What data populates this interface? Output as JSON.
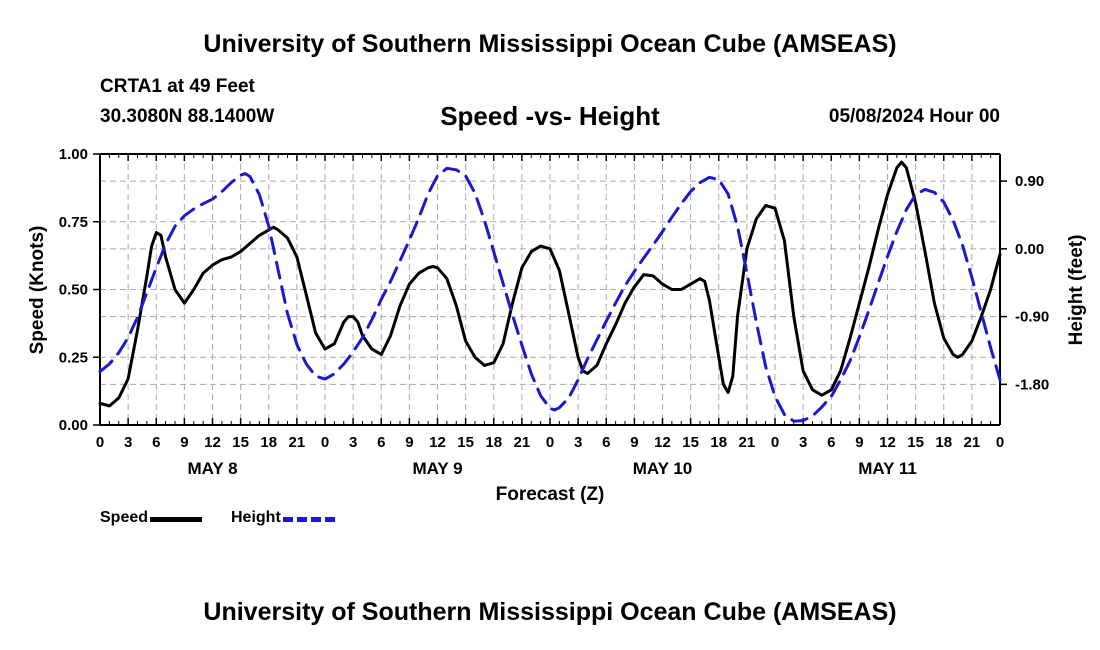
{
  "page": {
    "title_top": "University of Southern Mississippi Ocean Cube (AMSEAS)",
    "title_bottom": "University of Southern Mississippi Ocean Cube (AMSEAS)",
    "station": "CRTA1 at 49 Feet",
    "coords": "30.3080N  88.1400W",
    "run_date": "05/08/2024 Hour 00"
  },
  "colors": {
    "speed": "#000000",
    "height": "#1a1acc",
    "grid": "#aaaaaa"
  },
  "chart_data": {
    "type": "line",
    "title": "Speed -vs- Height",
    "xlabel": "Forecast (Z)",
    "ylabel_left": "Speed (Knots)",
    "ylabel_right": "Height (feet)",
    "xlim": [
      0,
      96
    ],
    "ylim_left": [
      0,
      1
    ],
    "ylim_right": [
      -2.34,
      1.26
    ],
    "x_tick_positions": [
      0,
      3,
      6,
      9,
      12,
      15,
      18,
      21,
      24,
      27,
      30,
      33,
      36,
      39,
      42,
      45,
      48,
      51,
      54,
      57,
      60,
      63,
      66,
      69,
      72,
      75,
      78,
      81,
      84,
      87,
      90,
      93,
      96
    ],
    "x_tick_labels": [
      "0",
      "3",
      "6",
      "9",
      "12",
      "15",
      "18",
      "21",
      "0",
      "3",
      "6",
      "9",
      "12",
      "15",
      "18",
      "21",
      "0",
      "3",
      "6",
      "9",
      "12",
      "15",
      "18",
      "21",
      "0",
      "3",
      "6",
      "9",
      "12",
      "15",
      "18",
      "21",
      "0"
    ],
    "day_labels": [
      {
        "x": 12,
        "label": "MAY 8"
      },
      {
        "x": 36,
        "label": "MAY 9"
      },
      {
        "x": 60,
        "label": "MAY 10"
      },
      {
        "x": 84,
        "label": "MAY 11"
      }
    ],
    "y_left_ticks": [
      0,
      0.25,
      0.5,
      0.75,
      1.0
    ],
    "y_left_tick_labels": [
      "0.00",
      "0.25",
      "0.50",
      "0.75",
      "1.00"
    ],
    "y_right_ticks": [
      0.9,
      0.0,
      -0.9,
      -1.8
    ],
    "y_right_tick_labels": [
      "0.90",
      "0.00",
      "-0.90",
      "-1.80"
    ],
    "grid": true,
    "series": [
      {
        "name": "Speed",
        "axis": "left",
        "style": "solid",
        "points": [
          [
            0,
            0.08
          ],
          [
            1,
            0.07
          ],
          [
            2,
            0.1
          ],
          [
            3,
            0.17
          ],
          [
            4,
            0.35
          ],
          [
            5,
            0.55
          ],
          [
            5.5,
            0.66
          ],
          [
            6,
            0.71
          ],
          [
            6.5,
            0.7
          ],
          [
            7,
            0.62
          ],
          [
            8,
            0.5
          ],
          [
            9,
            0.45
          ],
          [
            10,
            0.5
          ],
          [
            11,
            0.56
          ],
          [
            12,
            0.59
          ],
          [
            13,
            0.61
          ],
          [
            14,
            0.62
          ],
          [
            15,
            0.64
          ],
          [
            16,
            0.67
          ],
          [
            17,
            0.7
          ],
          [
            18,
            0.72
          ],
          [
            18.5,
            0.73
          ],
          [
            19,
            0.72
          ],
          [
            20,
            0.69
          ],
          [
            21,
            0.62
          ],
          [
            22,
            0.48
          ],
          [
            23,
            0.34
          ],
          [
            24,
            0.28
          ],
          [
            25,
            0.3
          ],
          [
            25.5,
            0.34
          ],
          [
            26,
            0.38
          ],
          [
            26.5,
            0.4
          ],
          [
            27,
            0.4
          ],
          [
            27.5,
            0.38
          ],
          [
            28,
            0.33
          ],
          [
            29,
            0.28
          ],
          [
            30,
            0.26
          ],
          [
            31,
            0.33
          ],
          [
            32,
            0.44
          ],
          [
            33,
            0.52
          ],
          [
            34,
            0.56
          ],
          [
            35,
            0.58
          ],
          [
            35.5,
            0.585
          ],
          [
            36,
            0.58
          ],
          [
            37,
            0.54
          ],
          [
            38,
            0.44
          ],
          [
            39,
            0.31
          ],
          [
            40,
            0.25
          ],
          [
            41,
            0.22
          ],
          [
            42,
            0.23
          ],
          [
            43,
            0.3
          ],
          [
            44,
            0.45
          ],
          [
            45,
            0.58
          ],
          [
            46,
            0.64
          ],
          [
            47,
            0.66
          ],
          [
            48,
            0.65
          ],
          [
            49,
            0.57
          ],
          [
            50,
            0.41
          ],
          [
            51,
            0.25
          ],
          [
            51.5,
            0.2
          ],
          [
            52,
            0.19
          ],
          [
            53,
            0.22
          ],
          [
            54,
            0.3
          ],
          [
            55,
            0.37
          ],
          [
            56,
            0.45
          ],
          [
            57,
            0.51
          ],
          [
            58,
            0.555
          ],
          [
            59,
            0.55
          ],
          [
            60,
            0.52
          ],
          [
            61,
            0.5
          ],
          [
            62,
            0.5
          ],
          [
            63,
            0.52
          ],
          [
            64,
            0.54
          ],
          [
            64.5,
            0.53
          ],
          [
            65,
            0.46
          ],
          [
            66,
            0.25
          ],
          [
            66.5,
            0.15
          ],
          [
            67,
            0.12
          ],
          [
            67.5,
            0.18
          ],
          [
            68,
            0.4
          ],
          [
            69,
            0.65
          ],
          [
            70,
            0.76
          ],
          [
            71,
            0.81
          ],
          [
            72,
            0.8
          ],
          [
            73,
            0.68
          ],
          [
            74,
            0.4
          ],
          [
            75,
            0.2
          ],
          [
            76,
            0.13
          ],
          [
            77,
            0.11
          ],
          [
            78,
            0.13
          ],
          [
            79,
            0.2
          ],
          [
            80,
            0.32
          ],
          [
            81,
            0.45
          ],
          [
            82,
            0.58
          ],
          [
            83,
            0.72
          ],
          [
            84,
            0.85
          ],
          [
            85,
            0.95
          ],
          [
            85.5,
            0.97
          ],
          [
            86,
            0.95
          ],
          [
            87,
            0.82
          ],
          [
            88,
            0.64
          ],
          [
            89,
            0.45
          ],
          [
            90,
            0.32
          ],
          [
            91,
            0.26
          ],
          [
            91.5,
            0.25
          ],
          [
            92,
            0.26
          ],
          [
            93,
            0.31
          ],
          [
            94,
            0.4
          ],
          [
            95,
            0.5
          ],
          [
            96,
            0.63
          ]
        ]
      },
      {
        "name": "Height",
        "axis": "right",
        "style": "dashed",
        "points": [
          [
            0,
            -1.63
          ],
          [
            1,
            -1.53
          ],
          [
            2,
            -1.38
          ],
          [
            3,
            -1.18
          ],
          [
            4,
            -0.91
          ],
          [
            5,
            -0.58
          ],
          [
            6,
            -0.25
          ],
          [
            7,
            0.06
          ],
          [
            8,
            0.3
          ],
          [
            9,
            0.44
          ],
          [
            10,
            0.53
          ],
          [
            11,
            0.6
          ],
          [
            12,
            0.66
          ],
          [
            13,
            0.76
          ],
          [
            14,
            0.88
          ],
          [
            15,
            0.98
          ],
          [
            15.5,
            1.0
          ],
          [
            16,
            0.96
          ],
          [
            17,
            0.72
          ],
          [
            18,
            0.3
          ],
          [
            19,
            -0.28
          ],
          [
            20,
            -0.86
          ],
          [
            21,
            -1.27
          ],
          [
            22,
            -1.53
          ],
          [
            23,
            -1.69
          ],
          [
            24,
            -1.73
          ],
          [
            25,
            -1.66
          ],
          [
            26,
            -1.53
          ],
          [
            27,
            -1.37
          ],
          [
            28,
            -1.18
          ],
          [
            29,
            -0.94
          ],
          [
            30,
            -0.67
          ],
          [
            31,
            -0.43
          ],
          [
            32,
            -0.16
          ],
          [
            33,
            0.12
          ],
          [
            34,
            0.41
          ],
          [
            35,
            0.73
          ],
          [
            36,
            0.97
          ],
          [
            37,
            1.07
          ],
          [
            38,
            1.05
          ],
          [
            39,
            0.97
          ],
          [
            40,
            0.74
          ],
          [
            41,
            0.38
          ],
          [
            42,
            -0.04
          ],
          [
            43,
            -0.46
          ],
          [
            44,
            -0.88
          ],
          [
            45,
            -1.28
          ],
          [
            46,
            -1.66
          ],
          [
            47,
            -1.95
          ],
          [
            48,
            -2.12
          ],
          [
            48.5,
            -2.14
          ],
          [
            49,
            -2.11
          ],
          [
            50,
            -1.98
          ],
          [
            51,
            -1.74
          ],
          [
            52,
            -1.46
          ],
          [
            53,
            -1.21
          ],
          [
            54,
            -0.96
          ],
          [
            55,
            -0.72
          ],
          [
            56,
            -0.49
          ],
          [
            57,
            -0.3
          ],
          [
            58,
            -0.12
          ],
          [
            59,
            0.05
          ],
          [
            60,
            0.23
          ],
          [
            61,
            0.42
          ],
          [
            62,
            0.6
          ],
          [
            63,
            0.76
          ],
          [
            64,
            0.88
          ],
          [
            65,
            0.95
          ],
          [
            66,
            0.92
          ],
          [
            67,
            0.73
          ],
          [
            68,
            0.3
          ],
          [
            69,
            -0.32
          ],
          [
            70,
            -0.97
          ],
          [
            71,
            -1.56
          ],
          [
            72,
            -1.96
          ],
          [
            73,
            -2.2
          ],
          [
            74,
            -2.29
          ],
          [
            75,
            -2.28
          ],
          [
            76,
            -2.22
          ],
          [
            77,
            -2.1
          ],
          [
            78,
            -1.96
          ],
          [
            79,
            -1.74
          ],
          [
            80,
            -1.49
          ],
          [
            81,
            -1.17
          ],
          [
            82,
            -0.82
          ],
          [
            83,
            -0.46
          ],
          [
            84,
            -0.1
          ],
          [
            85,
            0.23
          ],
          [
            86,
            0.52
          ],
          [
            87,
            0.72
          ],
          [
            88,
            0.79
          ],
          [
            89,
            0.75
          ],
          [
            90,
            0.62
          ],
          [
            91,
            0.38
          ],
          [
            92,
            0.05
          ],
          [
            93,
            -0.38
          ],
          [
            94,
            -0.85
          ],
          [
            95,
            -1.31
          ],
          [
            96,
            -1.74
          ]
        ]
      }
    ]
  }
}
